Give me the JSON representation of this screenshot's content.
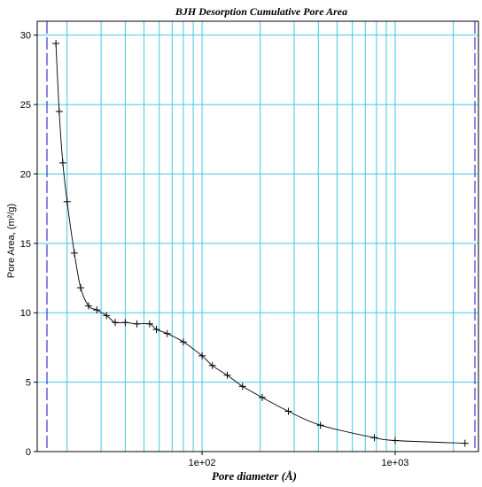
{
  "chart_data": {
    "type": "line",
    "title": "BJH Desorption Cumulative Pore Area",
    "xlabel": "Pore diameter (Å)",
    "ylabel": "Pore Area, (m²/g)",
    "x_scale": "log",
    "xlim": [
      14,
      2700
    ],
    "ylim": [
      0,
      31
    ],
    "x_ticks": [
      100,
      1000
    ],
    "x_tick_labels": [
      "1e+02",
      "1e+03"
    ],
    "y_ticks": [
      0,
      5,
      10,
      15,
      20,
      25,
      30
    ],
    "y_tick_labels": [
      "0",
      "5",
      "10",
      "15",
      "20",
      "25",
      "30"
    ],
    "grid": true,
    "grid_color": "#40c8e0",
    "line_color": "#000000",
    "series": [
      {
        "x": [
          17.5,
          18.2,
          19.0,
          20.0,
          21.8,
          23.5,
          25.8,
          28.5,
          32.0,
          35.5,
          40.0,
          46.0,
          53.5,
          58.0,
          66.0,
          80.0,
          100.0,
          113.0,
          135.0,
          162.0,
          205.0,
          280.0,
          410.0,
          780.0,
          1000.0,
          2300.0
        ],
        "y": [
          29.4,
          24.5,
          20.8,
          18.0,
          14.3,
          11.8,
          10.5,
          10.2,
          9.8,
          9.3,
          9.3,
          9.2,
          9.2,
          8.8,
          8.5,
          7.9,
          6.9,
          6.2,
          5.5,
          4.7,
          3.9,
          2.9,
          1.9,
          1.0,
          0.8,
          0.6
        ]
      }
    ]
  }
}
